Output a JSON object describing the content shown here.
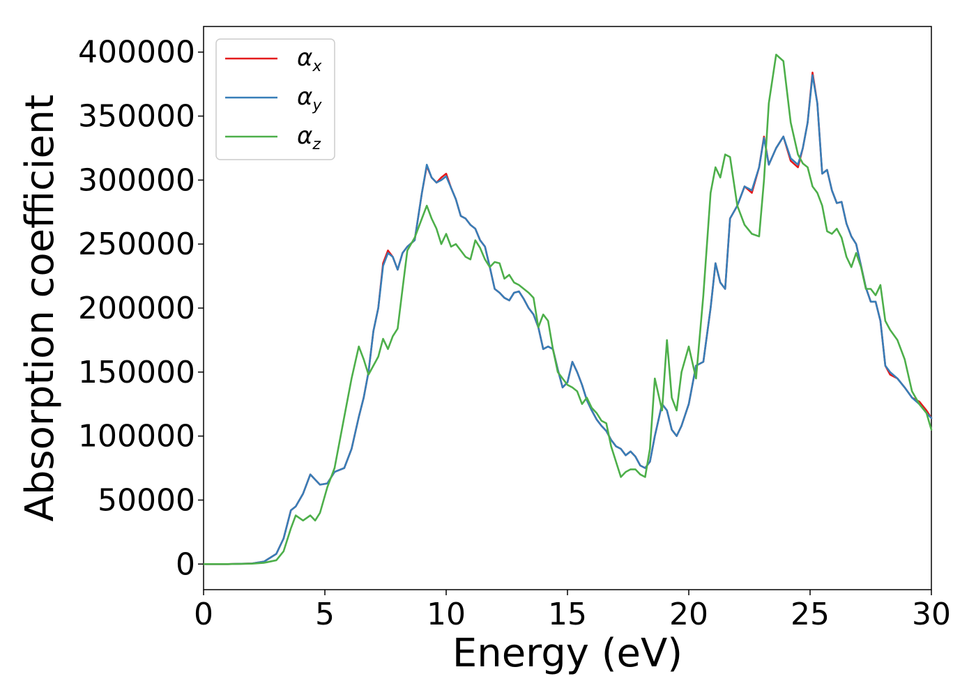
{
  "chart_data": {
    "type": "line",
    "title": "",
    "xlabel": "Energy (eV)",
    "ylabel": "Absorption coefficient",
    "xlim": [
      0,
      30
    ],
    "ylim": [
      -20000,
      420000
    ],
    "xticks": [
      0,
      5,
      10,
      15,
      20,
      25,
      30
    ],
    "xtick_labels": [
      "0",
      "5",
      "10",
      "15",
      "20",
      "25",
      "30"
    ],
    "yticks": [
      0,
      50000,
      100000,
      150000,
      200000,
      250000,
      300000,
      350000,
      400000
    ],
    "ytick_labels": [
      "0",
      "50000",
      "100000",
      "150000",
      "200000",
      "250000",
      "300000",
      "350000",
      "400000"
    ],
    "grid": false,
    "legend_position": "top-left",
    "series": [
      {
        "name": "α_x",
        "label_base": "α",
        "label_sub": "x",
        "color": "#e41a1c",
        "x": [
          0,
          1,
          2,
          2.5,
          3,
          3.3,
          3.6,
          3.8,
          4.1,
          4.4,
          4.6,
          4.8,
          5.1,
          5.4,
          5.8,
          6.1,
          6.4,
          6.6,
          6.8,
          7.0,
          7.2,
          7.4,
          7.6,
          7.8,
          8.0,
          8.2,
          8.4,
          8.7,
          9.0,
          9.2,
          9.4,
          9.6,
          9.8,
          10.0,
          10.2,
          10.4,
          10.6,
          10.8,
          11.0,
          11.2,
          11.4,
          11.6,
          11.8,
          12.0,
          12.2,
          12.4,
          12.6,
          12.8,
          13.0,
          13.2,
          13.4,
          13.6,
          13.8,
          14.0,
          14.2,
          14.4,
          14.6,
          14.8,
          15.0,
          15.2,
          15.4,
          15.6,
          15.8,
          16.0,
          16.2,
          16.4,
          16.6,
          16.8,
          17.0,
          17.2,
          17.4,
          17.6,
          17.8,
          18.0,
          18.2,
          18.4,
          18.6,
          18.9,
          19.1,
          19.3,
          19.5,
          19.7,
          20.0,
          20.3,
          20.6,
          20.9,
          21.1,
          21.3,
          21.5,
          21.7,
          22.0,
          22.3,
          22.6,
          22.9,
          23.1,
          23.3,
          23.6,
          23.9,
          24.2,
          24.5,
          24.7,
          24.9,
          25.1,
          25.3,
          25.5,
          25.7,
          25.9,
          26.1,
          26.3,
          26.5,
          26.7,
          26.9,
          27.1,
          27.3,
          27.5,
          27.7,
          27.9,
          28.1,
          28.3,
          28.6,
          28.9,
          29.2,
          29.5,
          29.8,
          30.0
        ],
        "y": [
          0,
          0,
          500,
          2000,
          8000,
          20000,
          42000,
          45000,
          55000,
          70000,
          66000,
          62000,
          63000,
          72000,
          75000,
          90000,
          115000,
          130000,
          150000,
          182000,
          200000,
          235000,
          245000,
          240000,
          230000,
          243000,
          248000,
          253000,
          290000,
          311000,
          302000,
          298000,
          302000,
          305000,
          294000,
          285000,
          272000,
          270000,
          265000,
          262000,
          253000,
          248000,
          232000,
          215000,
          212000,
          208000,
          206000,
          212000,
          213000,
          207000,
          200000,
          195000,
          185000,
          168000,
          170000,
          168000,
          152000,
          138000,
          142000,
          158000,
          150000,
          140000,
          128000,
          120000,
          113000,
          108000,
          104000,
          97000,
          92000,
          90000,
          85000,
          88000,
          84000,
          77000,
          75000,
          80000,
          100000,
          125000,
          120000,
          105000,
          100000,
          108000,
          125000,
          155000,
          158000,
          200000,
          235000,
          220000,
          215000,
          270000,
          280000,
          295000,
          290000,
          310000,
          334000,
          312000,
          325000,
          334000,
          315000,
          310000,
          325000,
          345000,
          384000,
          360000,
          305000,
          308000,
          292000,
          282000,
          283000,
          266000,
          256000,
          250000,
          233000,
          216000,
          205000,
          205000,
          190000,
          155000,
          148000,
          145000,
          138000,
          130000,
          127000,
          120000,
          114000
        ]
      },
      {
        "name": "α_y",
        "label_base": "α",
        "label_sub": "y",
        "color": "#377eb8",
        "x": [
          0,
          1,
          2,
          2.5,
          3,
          3.3,
          3.6,
          3.8,
          4.1,
          4.4,
          4.6,
          4.8,
          5.1,
          5.4,
          5.8,
          6.1,
          6.4,
          6.6,
          6.8,
          7.0,
          7.2,
          7.4,
          7.6,
          7.8,
          8.0,
          8.2,
          8.4,
          8.7,
          9.0,
          9.2,
          9.4,
          9.6,
          9.8,
          10.0,
          10.2,
          10.4,
          10.6,
          10.8,
          11.0,
          11.2,
          11.4,
          11.6,
          11.8,
          12.0,
          12.2,
          12.4,
          12.6,
          12.8,
          13.0,
          13.2,
          13.4,
          13.6,
          13.8,
          14.0,
          14.2,
          14.4,
          14.6,
          14.8,
          15.0,
          15.2,
          15.4,
          15.6,
          15.8,
          16.0,
          16.2,
          16.4,
          16.6,
          16.8,
          17.0,
          17.2,
          17.4,
          17.6,
          17.8,
          18.0,
          18.2,
          18.4,
          18.6,
          18.9,
          19.1,
          19.3,
          19.5,
          19.7,
          20.0,
          20.3,
          20.6,
          20.9,
          21.1,
          21.3,
          21.5,
          21.7,
          22.0,
          22.3,
          22.6,
          22.9,
          23.1,
          23.3,
          23.6,
          23.9,
          24.2,
          24.5,
          24.7,
          24.9,
          25.1,
          25.3,
          25.5,
          25.7,
          25.9,
          26.1,
          26.3,
          26.5,
          26.7,
          26.9,
          27.1,
          27.3,
          27.5,
          27.7,
          27.9,
          28.1,
          28.3,
          28.6,
          28.9,
          29.2,
          29.5,
          29.8,
          30.0
        ],
        "y": [
          0,
          0,
          500,
          2000,
          8000,
          20000,
          42000,
          45000,
          55000,
          70000,
          66000,
          62000,
          63000,
          72000,
          75000,
          90000,
          115000,
          130000,
          150000,
          182000,
          200000,
          233000,
          243000,
          240000,
          230000,
          243000,
          248000,
          253000,
          290000,
          312000,
          302000,
          298000,
          300000,
          303000,
          294000,
          285000,
          272000,
          270000,
          265000,
          262000,
          253000,
          248000,
          232000,
          215000,
          212000,
          208000,
          206000,
          212000,
          213000,
          207000,
          200000,
          195000,
          185000,
          168000,
          170000,
          168000,
          152000,
          138000,
          142000,
          158000,
          150000,
          140000,
          128000,
          120000,
          113000,
          108000,
          104000,
          97000,
          92000,
          90000,
          85000,
          88000,
          84000,
          77000,
          75000,
          80000,
          100000,
          125000,
          120000,
          105000,
          100000,
          108000,
          125000,
          155000,
          158000,
          200000,
          235000,
          220000,
          215000,
          270000,
          280000,
          295000,
          292000,
          310000,
          333000,
          312000,
          325000,
          334000,
          317000,
          312000,
          325000,
          345000,
          382000,
          360000,
          305000,
          308000,
          292000,
          282000,
          283000,
          266000,
          256000,
          250000,
          233000,
          216000,
          205000,
          205000,
          190000,
          155000,
          150000,
          145000,
          138000,
          130000,
          125000,
          118000,
          114000
        ]
      },
      {
        "name": "α_z",
        "label_base": "α",
        "label_sub": "z",
        "color": "#4daf4a",
        "x": [
          0,
          1,
          2,
          2.5,
          3,
          3.3,
          3.6,
          3.8,
          4.1,
          4.4,
          4.6,
          4.8,
          5.1,
          5.4,
          5.8,
          6.1,
          6.4,
          6.6,
          6.8,
          7.0,
          7.2,
          7.4,
          7.6,
          7.8,
          8.0,
          8.2,
          8.4,
          8.7,
          9.0,
          9.2,
          9.4,
          9.6,
          9.8,
          10.0,
          10.2,
          10.4,
          10.6,
          10.8,
          11.0,
          11.2,
          11.4,
          11.6,
          11.8,
          12.0,
          12.2,
          12.4,
          12.6,
          12.8,
          13.0,
          13.2,
          13.4,
          13.6,
          13.8,
          14.0,
          14.2,
          14.4,
          14.6,
          14.8,
          15.0,
          15.2,
          15.4,
          15.6,
          15.8,
          16.0,
          16.2,
          16.4,
          16.6,
          16.8,
          17.0,
          17.2,
          17.4,
          17.6,
          17.8,
          18.0,
          18.2,
          18.4,
          18.6,
          18.9,
          19.1,
          19.3,
          19.5,
          19.7,
          20.0,
          20.3,
          20.6,
          20.9,
          21.1,
          21.3,
          21.5,
          21.7,
          22.0,
          22.3,
          22.6,
          22.9,
          23.1,
          23.3,
          23.6,
          23.9,
          24.2,
          24.5,
          24.7,
          24.9,
          25.1,
          25.3,
          25.5,
          25.7,
          25.9,
          26.1,
          26.3,
          26.5,
          26.7,
          26.9,
          27.1,
          27.3,
          27.5,
          27.7,
          27.9,
          28.1,
          28.3,
          28.6,
          28.9,
          29.2,
          29.5,
          29.8,
          30.0
        ],
        "y": [
          0,
          0,
          300,
          1000,
          3000,
          10000,
          28000,
          38000,
          34000,
          38000,
          34000,
          40000,
          60000,
          75000,
          115000,
          145000,
          170000,
          160000,
          148000,
          155000,
          162000,
          176000,
          168000,
          178000,
          184000,
          215000,
          245000,
          255000,
          270000,
          280000,
          270000,
          262000,
          250000,
          258000,
          248000,
          250000,
          245000,
          240000,
          238000,
          253000,
          247000,
          238000,
          232000,
          236000,
          235000,
          223000,
          226000,
          220000,
          218000,
          215000,
          212000,
          208000,
          185000,
          195000,
          190000,
          168000,
          150000,
          145000,
          140000,
          138000,
          135000,
          125000,
          130000,
          122000,
          118000,
          112000,
          110000,
          92000,
          80000,
          68000,
          72000,
          74000,
          74000,
          70000,
          68000,
          90000,
          145000,
          120000,
          175000,
          130000,
          120000,
          150000,
          170000,
          145000,
          210000,
          290000,
          310000,
          302000,
          320000,
          318000,
          280000,
          265000,
          258000,
          256000,
          300000,
          360000,
          398000,
          393000,
          345000,
          320000,
          313000,
          310000,
          295000,
          290000,
          280000,
          260000,
          258000,
          262000,
          255000,
          240000,
          232000,
          243000,
          232000,
          215000,
          215000,
          210000,
          218000,
          190000,
          183000,
          175000,
          160000,
          135000,
          125000,
          118000,
          105000
        ]
      }
    ]
  }
}
